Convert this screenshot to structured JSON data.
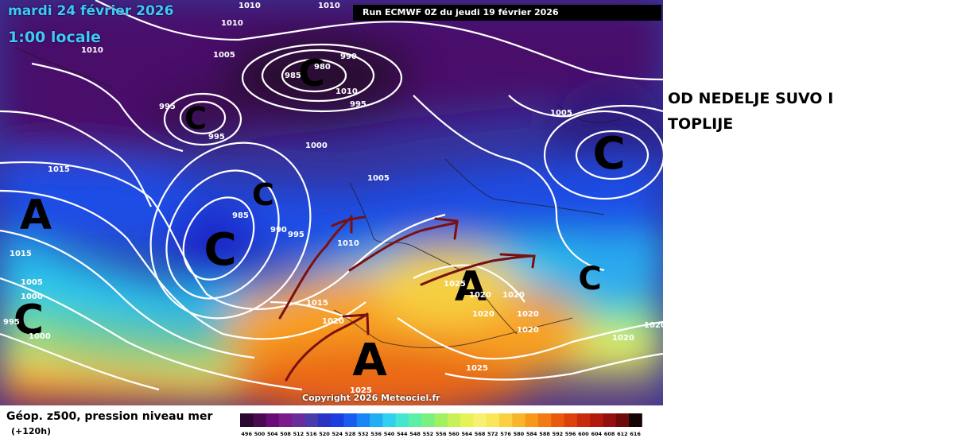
{
  "map": {
    "date_label": "mardi 24 février 2026",
    "time_label": "1:00 locale",
    "run_label": "Run ECMWF 0Z du jeudi 19 février 2026",
    "copyright": "Copyright 2026 Meteociel.fr",
    "pressure_systems": [
      {
        "type": "low",
        "symbol": "C"
      },
      {
        "type": "low",
        "symbol": "C"
      },
      {
        "type": "low",
        "symbol": "C"
      },
      {
        "type": "low",
        "symbol": "C"
      },
      {
        "type": "low",
        "symbol": "C"
      },
      {
        "type": "low",
        "symbol": "C"
      },
      {
        "type": "low",
        "symbol": "C"
      },
      {
        "type": "high",
        "symbol": "A"
      },
      {
        "type": "high",
        "symbol": "A"
      },
      {
        "type": "high",
        "symbol": "A"
      }
    ],
    "isobar_labels": [
      "1010",
      "1010",
      "1010",
      "1010",
      "1005",
      "980",
      "990",
      "985",
      "995",
      "995",
      "995",
      "1010",
      "1005",
      "1000",
      "1015",
      "985",
      "990",
      "995",
      "1005",
      "1010",
      "1015",
      "1005",
      "1000",
      "995",
      "1000",
      "1025",
      "1020",
      "1020",
      "1020",
      "1020",
      "1020",
      "1015",
      "1020",
      "1025",
      "1025",
      "1020",
      "1020"
    ]
  },
  "annotation": {
    "line1": "OD NEDELJE SUVO I",
    "line2": "TOPLIJE"
  },
  "legend": {
    "title": "Géop. z500, pression niveau mer",
    "subtitle": "(+120h)",
    "scale_values": [
      "496",
      "500",
      "504",
      "508",
      "512",
      "516",
      "520",
      "524",
      "528",
      "532",
      "536",
      "540",
      "544",
      "548",
      "552",
      "556",
      "560",
      "564",
      "568",
      "572",
      "576",
      "580",
      "584",
      "588",
      "592",
      "596",
      "600",
      "604",
      "608",
      "612",
      "616"
    ],
    "scale_colors": [
      "#2a0830",
      "#4a0a52",
      "#6a0a78",
      "#7a1a8c",
      "#6a2c9c",
      "#4a3aaa",
      "#2a34c4",
      "#1a3ee0",
      "#1a5cf0",
      "#1a86f4",
      "#22aef2",
      "#30d0f0",
      "#44e6d2",
      "#5cf0a6",
      "#7af080",
      "#a0f060",
      "#c8f058",
      "#e6f256",
      "#f8f070",
      "#fae65a",
      "#fad040",
      "#fab428",
      "#f89818",
      "#f27a12",
      "#ea5a0e",
      "#de400c",
      "#c82a0c",
      "#b41a0c",
      "#941010",
      "#6e0a0a",
      "#140404"
    ]
  }
}
